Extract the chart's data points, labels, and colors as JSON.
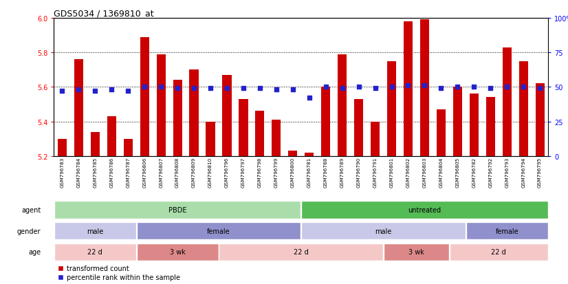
{
  "title": "GDS5034 / 1369810_at",
  "samples": [
    "GSM796783",
    "GSM796784",
    "GSM796785",
    "GSM796786",
    "GSM796787",
    "GSM796806",
    "GSM796807",
    "GSM796808",
    "GSM796809",
    "GSM796810",
    "GSM796796",
    "GSM796797",
    "GSM796798",
    "GSM796799",
    "GSM796800",
    "GSM796781",
    "GSM796788",
    "GSM796789",
    "GSM796790",
    "GSM796791",
    "GSM796801",
    "GSM796802",
    "GSM796803",
    "GSM796804",
    "GSM796805",
    "GSM796782",
    "GSM796792",
    "GSM796793",
    "GSM796794",
    "GSM796795"
  ],
  "bar_values": [
    5.3,
    5.76,
    5.34,
    5.43,
    5.3,
    5.89,
    5.79,
    5.64,
    5.7,
    5.4,
    5.67,
    5.53,
    5.46,
    5.41,
    5.23,
    5.22,
    5.6,
    5.79,
    5.53,
    5.4,
    5.75,
    5.98,
    5.99,
    5.47,
    5.6,
    5.56,
    5.54,
    5.83,
    5.75,
    5.62
  ],
  "percentile_values": [
    47,
    48,
    47,
    48,
    47,
    50,
    50,
    49,
    49,
    49,
    49,
    49,
    49,
    48,
    48,
    42,
    50,
    49,
    50,
    49,
    50,
    51,
    51,
    49,
    50,
    50,
    49,
    50,
    50,
    49
  ],
  "ylim": [
    5.2,
    6.0
  ],
  "yticks": [
    5.2,
    5.4,
    5.6,
    5.8,
    6.0
  ],
  "right_yticks": [
    0,
    25,
    50,
    75,
    100
  ],
  "bar_color": "#cc0000",
  "dot_color": "#2222cc",
  "agent_groups": [
    {
      "label": "PBDE",
      "start": 0,
      "end": 14,
      "color": "#aaddaa"
    },
    {
      "label": "untreated",
      "start": 15,
      "end": 29,
      "color": "#55bb55"
    }
  ],
  "gender_groups": [
    {
      "label": "male",
      "start": 0,
      "end": 4,
      "color": "#c8c8e8"
    },
    {
      "label": "female",
      "start": 5,
      "end": 14,
      "color": "#9090cc"
    },
    {
      "label": "male",
      "start": 15,
      "end": 24,
      "color": "#c8c8e8"
    },
    {
      "label": "female",
      "start": 25,
      "end": 29,
      "color": "#9090cc"
    }
  ],
  "age_groups": [
    {
      "label": "22 d",
      "start": 0,
      "end": 4,
      "color": "#f5c8c8"
    },
    {
      "label": "3 wk",
      "start": 5,
      "end": 9,
      "color": "#dd8888"
    },
    {
      "label": "22 d",
      "start": 10,
      "end": 19,
      "color": "#f5c8c8"
    },
    {
      "label": "3 wk",
      "start": 20,
      "end": 23,
      "color": "#dd8888"
    },
    {
      "label": "22 d",
      "start": 24,
      "end": 29,
      "color": "#f5c8c8"
    }
  ]
}
